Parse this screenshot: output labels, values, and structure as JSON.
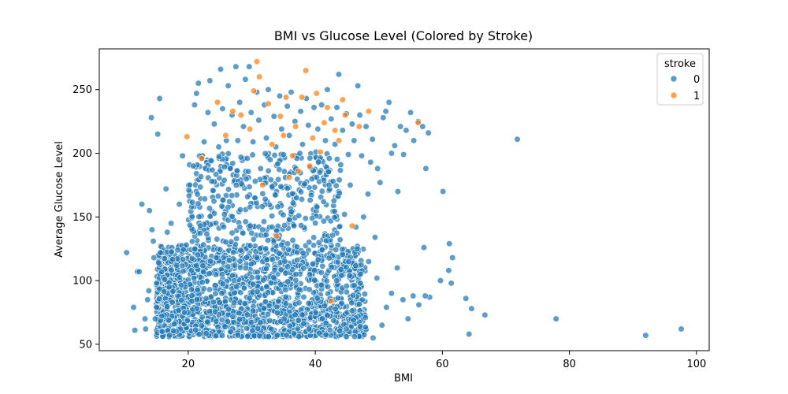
{
  "chart_data": {
    "type": "scatter",
    "title": "BMI vs Glucose Level (Colored by Stroke)",
    "xlabel": "BMI",
    "ylabel": "Average Glucose Level",
    "xlim": [
      6,
      102
    ],
    "ylim": [
      45,
      282
    ],
    "xticks": [
      20,
      40,
      60,
      80,
      100
    ],
    "yticks": [
      50,
      100,
      150,
      200,
      250
    ],
    "grid": false,
    "legend": {
      "title": "stroke",
      "placement": "top-right",
      "entries": [
        {
          "label": "0",
          "color": "#1f77b4"
        },
        {
          "label": "1",
          "color": "#ff7f0e"
        }
      ]
    },
    "series": [
      {
        "name": "0",
        "color": "#1f77b4",
        "points": [
          [
            10.3,
            122
          ],
          [
            11.4,
            79
          ],
          [
            11.6,
            61
          ],
          [
            12.0,
            107
          ],
          [
            12.3,
            107
          ],
          [
            12.7,
            160
          ],
          [
            13.2,
            70
          ],
          [
            13.3,
            62
          ],
          [
            13.6,
            85
          ],
          [
            13.8,
            92
          ],
          [
            13.9,
            155
          ],
          [
            14.2,
            228
          ],
          [
            14.3,
            140
          ],
          [
            14.5,
            131
          ],
          [
            14.6,
            118
          ],
          [
            14.8,
            70
          ],
          [
            15.0,
            79
          ],
          [
            15.2,
            215
          ],
          [
            15.5,
            243
          ],
          [
            15.6,
            122
          ],
          [
            15.9,
            60
          ],
          [
            16.3,
            101
          ],
          [
            16.5,
            172
          ],
          [
            16.7,
            138
          ],
          [
            17.0,
            95
          ],
          [
            17.3,
            145
          ],
          [
            17.5,
            83
          ],
          [
            17.8,
            66
          ],
          [
            18.2,
            112
          ],
          [
            18.6,
            160
          ],
          [
            19.1,
            198
          ],
          [
            19.4,
            75
          ],
          [
            19.7,
            128
          ],
          [
            20.1,
            171
          ],
          [
            20.5,
            93
          ],
          [
            20.8,
            190
          ],
          [
            21.0,
            238
          ],
          [
            21.3,
            247
          ],
          [
            21.6,
            255
          ],
          [
            21.9,
            143
          ],
          [
            22.2,
            196
          ],
          [
            22.5,
            209
          ],
          [
            22.8,
            86
          ],
          [
            23.1,
            232
          ],
          [
            23.4,
            257
          ],
          [
            23.7,
            178
          ],
          [
            24.1,
            223
          ],
          [
            24.4,
            118
          ],
          [
            24.8,
            205
          ],
          [
            25.1,
            266
          ],
          [
            25.4,
            235
          ],
          [
            25.7,
            152
          ],
          [
            26.0,
            210
          ],
          [
            26.3,
            253
          ],
          [
            26.6,
            188
          ],
          [
            26.9,
            230
          ],
          [
            27.2,
            100
          ],
          [
            27.5,
            268
          ],
          [
            27.8,
            210
          ],
          [
            28.1,
            240
          ],
          [
            28.4,
            176
          ],
          [
            28.7,
            221
          ],
          [
            29.0,
            258
          ],
          [
            29.3,
            196
          ],
          [
            29.6,
            268
          ],
          [
            29.9,
            232
          ],
          [
            30.2,
            209
          ],
          [
            30.5,
            165
          ],
          [
            30.8,
            248
          ],
          [
            31.1,
            226
          ],
          [
            31.4,
            188
          ],
          [
            31.7,
            140
          ],
          [
            32.0,
            238
          ],
          [
            32.3,
            212
          ],
          [
            32.6,
            250
          ],
          [
            32.9,
            195
          ],
          [
            33.2,
            174
          ],
          [
            33.5,
            229
          ],
          [
            33.8,
            205
          ],
          [
            34.1,
            158
          ],
          [
            34.4,
            245
          ],
          [
            34.7,
            219
          ],
          [
            35.0,
            199
          ],
          [
            35.3,
            181
          ],
          [
            35.6,
            237
          ],
          [
            35.9,
            214
          ],
          [
            36.2,
            248
          ],
          [
            36.5,
            161
          ],
          [
            36.8,
            225
          ],
          [
            37.1,
            196
          ],
          [
            37.4,
            151
          ],
          [
            37.7,
            233
          ],
          [
            38.0,
            207
          ],
          [
            38.3,
            176
          ],
          [
            38.6,
            243
          ],
          [
            38.9,
            222
          ],
          [
            39.2,
            189
          ],
          [
            39.5,
            149
          ],
          [
            39.8,
            236
          ],
          [
            40.1,
            201
          ],
          [
            40.4,
            219
          ],
          [
            40.7,
            185
          ],
          [
            41.0,
            238
          ],
          [
            41.3,
            162
          ],
          [
            41.6,
            210
          ],
          [
            41.9,
            250
          ],
          [
            42.2,
            196
          ],
          [
            42.5,
            227
          ],
          [
            42.8,
            178
          ],
          [
            43.1,
            207
          ],
          [
            43.4,
            236
          ],
          [
            43.7,
            262
          ],
          [
            44.0,
            191
          ],
          [
            44.3,
            218
          ],
          [
            44.6,
            152
          ],
          [
            44.9,
            231
          ],
          [
            45.2,
            199
          ],
          [
            45.5,
            175
          ],
          [
            45.8,
            223
          ],
          [
            46.1,
            210
          ],
          [
            46.4,
            142
          ],
          [
            46.7,
            253
          ],
          [
            47.0,
            230
          ],
          [
            47.3,
            198
          ],
          [
            47.6,
            150
          ],
          [
            48.0,
            221
          ],
          [
            48.3,
            168
          ],
          [
            48.7,
            193
          ],
          [
            49.0,
            211
          ],
          [
            49.4,
            134
          ],
          [
            49.8,
            188
          ],
          [
            50.2,
            177
          ],
          [
            50.7,
            228
          ],
          [
            51.1,
            233
          ],
          [
            51.6,
            240
          ],
          [
            52.0,
            200
          ],
          [
            52.5,
            206
          ],
          [
            53.0,
            170
          ],
          [
            53.4,
            221
          ],
          [
            53.9,
            199
          ],
          [
            54.3,
            218
          ],
          [
            55.0,
            232
          ],
          [
            55.5,
            210
          ],
          [
            56.2,
            225
          ],
          [
            56.9,
            221
          ],
          [
            57.4,
            188
          ],
          [
            57.8,
            216
          ],
          [
            60.1,
            170
          ],
          [
            61.6,
            118
          ],
          [
            61.1,
            129
          ],
          [
            61.0,
            108
          ],
          [
            61.4,
            98
          ],
          [
            59.7,
            100
          ],
          [
            58.0,
            87
          ],
          [
            57.1,
            126
          ],
          [
            57.3,
            88
          ],
          [
            56.3,
            81
          ],
          [
            55.4,
            88
          ],
          [
            54.6,
            70
          ],
          [
            53.8,
            85
          ],
          [
            52.9,
            110
          ],
          [
            52.0,
            90
          ],
          [
            51.2,
            79
          ],
          [
            50.5,
            65
          ],
          [
            49.7,
            102
          ],
          [
            49.1,
            55
          ],
          [
            48.4,
            115
          ],
          [
            47.9,
            71
          ],
          [
            47.1,
            98
          ],
          [
            46.6,
            125
          ],
          [
            46.0,
            69
          ],
          [
            45.4,
            104
          ],
          [
            44.9,
            62
          ],
          [
            63.7,
            86
          ],
          [
            64.6,
            78
          ],
          [
            66.7,
            73
          ],
          [
            64.2,
            58
          ],
          [
            71.8,
            211
          ],
          [
            77.9,
            70
          ],
          [
            92.0,
            57
          ],
          [
            97.6,
            62
          ]
        ]
      },
      {
        "name": "1",
        "color": "#ff7f0e",
        "points": [
          [
            19.8,
            213
          ],
          [
            22.1,
            196
          ],
          [
            24.6,
            240
          ],
          [
            25.9,
            214
          ],
          [
            27.0,
            233
          ],
          [
            28.3,
            230
          ],
          [
            29.7,
            219
          ],
          [
            30.3,
            249
          ],
          [
            30.8,
            272
          ],
          [
            31.2,
            260
          ],
          [
            31.7,
            175
          ],
          [
            32.6,
            239
          ],
          [
            33.2,
            207
          ],
          [
            33.9,
            135
          ],
          [
            34.5,
            229
          ],
          [
            35.0,
            214
          ],
          [
            35.4,
            244
          ],
          [
            35.9,
            181
          ],
          [
            36.4,
            198
          ],
          [
            36.9,
            221
          ],
          [
            37.3,
            186
          ],
          [
            37.9,
            244
          ],
          [
            38.5,
            265
          ],
          [
            39.1,
            190
          ],
          [
            39.6,
            212
          ],
          [
            40.2,
            247
          ],
          [
            40.8,
            201
          ],
          [
            41.4,
            224
          ],
          [
            41.9,
            236
          ],
          [
            42.5,
            84
          ],
          [
            43.1,
            218
          ],
          [
            43.7,
            210
          ],
          [
            44.3,
            242
          ],
          [
            44.7,
            230
          ],
          [
            45.8,
            143
          ],
          [
            46.9,
            221
          ],
          [
            48.4,
            233
          ],
          [
            56.2,
            224
          ]
        ]
      }
    ]
  }
}
